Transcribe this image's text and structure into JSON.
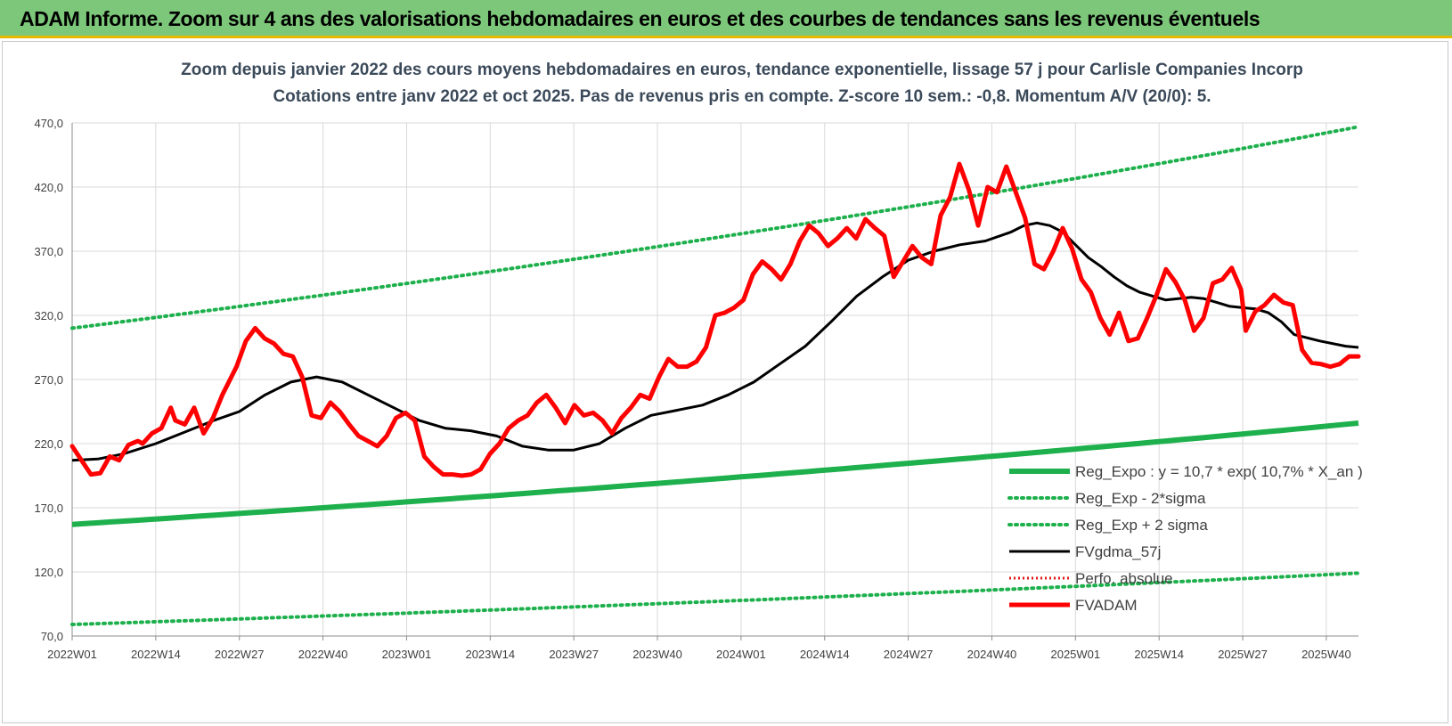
{
  "banner": {
    "title": "ADAM Informe. Zoom sur 4 ans des valorisations hebdomadaires en euros et des courbes de tendances sans les revenus éventuels"
  },
  "colors": {
    "banner_bg": "#7dc77a",
    "banner_border": "#e8b800",
    "reg": "#1db04c",
    "band": "#1db04c",
    "ma": "#000000",
    "perfo": "#e01818",
    "price": "#ff0000",
    "grid": "#d9d9d9"
  },
  "chart_data": {
    "type": "line",
    "title_line1": "Zoom depuis janvier 2022 des cours moyens hebdomadaires en euros, tendance exponentielle, lissage 57 j pour Carlisle Companies Incorp",
    "title_line2": "Cotations entre janv 2022 et oct 2025. Pas de revenus pris en compte. Z-score 10 sem.: -0,8.  Momentum A/V (20/0): 5.",
    "ylim": [
      70,
      470
    ],
    "y_ticks": [
      "470,0",
      "420,0",
      "370,0",
      "320,0",
      "270,0",
      "220,0",
      "170,0",
      "120,0",
      "70,0"
    ],
    "y_tick_values": [
      470,
      420,
      370,
      320,
      270,
      220,
      170,
      120,
      70
    ],
    "x_ticks": [
      "2022W01",
      "2022W14",
      "2022W27",
      "2022W40",
      "2023W01",
      "2023W14",
      "2023W27",
      "2023W40",
      "2024W01",
      "2024W14",
      "2024W27",
      "2024W40",
      "2025W01",
      "2025W14",
      "2025W27",
      "2025W40"
    ],
    "x_tick_index": [
      0,
      13,
      26,
      39,
      52,
      65,
      78,
      91,
      104,
      117,
      130,
      143,
      156,
      169,
      182,
      195
    ],
    "n_weeks": 200,
    "legend": [
      {
        "key": "reg",
        "label": "Reg_Expo : y = 10,7 * exp( 10,7% *  X_an )",
        "style": "solid-thick"
      },
      {
        "key": "band_low",
        "label": "Reg_Exp - 2*sigma",
        "style": "dotted-green"
      },
      {
        "key": "band_high",
        "label": "Reg_Exp + 2 sigma",
        "style": "dotted-green"
      },
      {
        "key": "ma",
        "label": "FVgdma_57j",
        "style": "solid-black"
      },
      {
        "key": "perfo",
        "label": "Perfo. absolue",
        "style": "dotted-red"
      },
      {
        "key": "price",
        "label": "FVADAM",
        "style": "solid-red-thick"
      }
    ],
    "series": [
      {
        "name": "Reg_Expo",
        "start": 157,
        "end": 236
      },
      {
        "name": "Reg_Exp - 2*sigma",
        "start": 79,
        "end": 119
      },
      {
        "name": "Reg_Exp + 2 sigma",
        "start": 310,
        "end": 467
      },
      {
        "name": "FVgdma_57j",
        "points": [
          [
            0,
            207
          ],
          [
            4,
            208
          ],
          [
            8,
            212
          ],
          [
            13,
            220
          ],
          [
            18,
            230
          ],
          [
            22,
            238
          ],
          [
            26,
            245
          ],
          [
            30,
            258
          ],
          [
            34,
            268
          ],
          [
            38,
            272
          ],
          [
            42,
            268
          ],
          [
            46,
            258
          ],
          [
            50,
            248
          ],
          [
            54,
            238
          ],
          [
            58,
            232
          ],
          [
            62,
            230
          ],
          [
            66,
            226
          ],
          [
            68,
            222
          ],
          [
            70,
            218
          ],
          [
            74,
            215
          ],
          [
            78,
            215
          ],
          [
            82,
            220
          ],
          [
            86,
            232
          ],
          [
            90,
            242
          ],
          [
            94,
            246
          ],
          [
            98,
            250
          ],
          [
            102,
            258
          ],
          [
            106,
            268
          ],
          [
            110,
            282
          ],
          [
            114,
            296
          ],
          [
            118,
            315
          ],
          [
            122,
            335
          ],
          [
            126,
            350
          ],
          [
            130,
            363
          ],
          [
            134,
            370
          ],
          [
            138,
            375
          ],
          [
            142,
            378
          ],
          [
            146,
            385
          ],
          [
            148,
            390
          ],
          [
            150,
            392
          ],
          [
            152,
            390
          ],
          [
            154,
            385
          ],
          [
            156,
            375
          ],
          [
            158,
            365
          ],
          [
            160,
            358
          ],
          [
            162,
            350
          ],
          [
            164,
            343
          ],
          [
            166,
            338
          ],
          [
            168,
            335
          ],
          [
            170,
            332
          ],
          [
            172,
            333
          ],
          [
            174,
            334
          ],
          [
            176,
            333
          ],
          [
            178,
            330
          ],
          [
            180,
            327
          ],
          [
            182,
            326
          ],
          [
            184,
            325
          ],
          [
            186,
            322
          ],
          [
            188,
            315
          ],
          [
            190,
            305
          ],
          [
            194,
            300
          ],
          [
            198,
            296
          ],
          [
            200,
            295
          ]
        ]
      },
      {
        "name": "FVADAM",
        "points": [
          [
            0,
            218
          ],
          [
            2,
            207
          ],
          [
            4,
            196
          ],
          [
            6,
            197
          ],
          [
            8,
            210
          ],
          [
            10,
            207
          ],
          [
            12,
            219
          ],
          [
            14,
            222
          ],
          [
            15,
            220
          ],
          [
            17,
            228
          ],
          [
            19,
            232
          ],
          [
            21,
            248
          ],
          [
            22,
            238
          ],
          [
            24,
            235
          ],
          [
            26,
            248
          ],
          [
            28,
            228
          ],
          [
            30,
            240
          ],
          [
            32,
            258
          ],
          [
            35,
            280
          ],
          [
            37,
            300
          ],
          [
            39,
            310
          ],
          [
            41,
            302
          ],
          [
            43,
            298
          ],
          [
            45,
            290
          ],
          [
            47,
            288
          ],
          [
            49,
            272
          ],
          [
            51,
            242
          ],
          [
            53,
            240
          ],
          [
            55,
            252
          ],
          [
            57,
            245
          ],
          [
            59,
            235
          ],
          [
            61,
            226
          ],
          [
            63,
            222
          ],
          [
            65,
            218
          ],
          [
            67,
            226
          ],
          [
            69,
            240
          ],
          [
            71,
            244
          ],
          [
            73,
            238
          ],
          [
            75,
            210
          ],
          [
            77,
            202
          ],
          [
            79,
            196
          ],
          [
            81,
            196
          ],
          [
            83,
            195
          ],
          [
            85,
            196
          ],
          [
            87,
            200
          ],
          [
            89,
            212
          ],
          [
            91,
            220
          ],
          [
            93,
            232
          ],
          [
            95,
            238
          ],
          [
            97,
            242
          ],
          [
            99,
            252
          ],
          [
            101,
            258
          ],
          [
            103,
            248
          ],
          [
            105,
            236
          ],
          [
            107,
            250
          ],
          [
            109,
            242
          ],
          [
            111,
            244
          ],
          [
            113,
            238
          ],
          [
            115,
            228
          ],
          [
            117,
            240
          ],
          [
            119,
            248
          ],
          [
            121,
            258
          ],
          [
            123,
            255
          ],
          [
            125,
            272
          ],
          [
            127,
            286
          ],
          [
            129,
            280
          ],
          [
            131,
            280
          ],
          [
            133,
            284
          ],
          [
            135,
            295
          ],
          [
            137,
            320
          ],
          [
            139,
            322
          ],
          [
            141,
            326
          ],
          [
            143,
            332
          ],
          [
            145,
            352
          ],
          [
            147,
            362
          ],
          [
            149,
            356
          ],
          [
            151,
            348
          ],
          [
            153,
            360
          ],
          [
            155,
            378
          ],
          [
            157,
            390
          ],
          [
            159,
            384
          ],
          [
            161,
            374
          ],
          [
            163,
            380
          ],
          [
            165,
            388
          ],
          [
            167,
            380
          ],
          [
            169,
            395
          ],
          [
            171,
            388
          ],
          [
            173,
            382
          ],
          [
            175,
            350
          ],
          [
            177,
            362
          ],
          [
            179,
            374
          ],
          [
            181,
            365
          ],
          [
            183,
            360
          ],
          [
            185,
            398
          ],
          [
            187,
            412
          ],
          [
            189,
            438
          ],
          [
            191,
            418
          ],
          [
            193,
            390
          ],
          [
            195,
            420
          ],
          [
            197,
            416
          ],
          [
            199,
            436
          ],
          [
            201,
            416
          ],
          [
            203,
            396
          ],
          [
            205,
            360
          ],
          [
            207,
            356
          ],
          [
            209,
            370
          ],
          [
            211,
            388
          ],
          [
            213,
            372
          ],
          [
            215,
            348
          ],
          [
            217,
            338
          ],
          [
            219,
            318
          ],
          [
            221,
            305
          ],
          [
            223,
            322
          ],
          [
            225,
            300
          ],
          [
            227,
            302
          ],
          [
            229,
            318
          ],
          [
            231,
            336
          ],
          [
            233,
            356
          ],
          [
            235,
            346
          ],
          [
            237,
            332
          ],
          [
            239,
            308
          ],
          [
            241,
            318
          ],
          [
            243,
            345
          ],
          [
            245,
            348
          ],
          [
            247,
            357
          ],
          [
            249,
            340
          ],
          [
            250,
            308
          ],
          [
            252,
            323
          ],
          [
            254,
            328
          ],
          [
            256,
            336
          ],
          [
            258,
            330
          ],
          [
            260,
            328
          ],
          [
            262,
            293
          ],
          [
            264,
            283
          ],
          [
            266,
            282
          ],
          [
            268,
            280
          ],
          [
            270,
            282
          ],
          [
            272,
            288
          ],
          [
            274,
            288
          ]
        ]
      }
    ],
    "price_index_max": 274
  }
}
